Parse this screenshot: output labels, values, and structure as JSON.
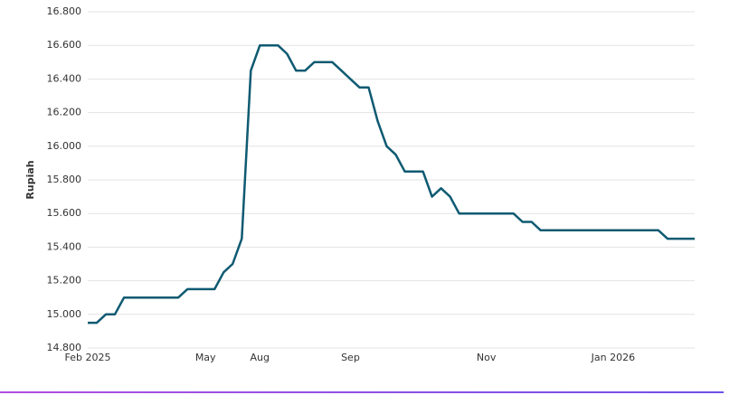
{
  "chart_data": {
    "type": "line",
    "y_label": "Rupiah",
    "categories": [
      "Feb 2025",
      null,
      null,
      null,
      null,
      null,
      null,
      null,
      null,
      null,
      null,
      null,
      null,
      "May",
      null,
      null,
      null,
      null,
      null,
      "Aug",
      null,
      null,
      null,
      null,
      null,
      null,
      null,
      null,
      null,
      "Sep",
      null,
      null,
      null,
      null,
      null,
      null,
      null,
      null,
      null,
      null,
      null,
      null,
      null,
      null,
      "Nov",
      null,
      null,
      null,
      null,
      null,
      null,
      null,
      null,
      null,
      null,
      null,
      null,
      null,
      "Jan 2026",
      null,
      null,
      null,
      null,
      null,
      null,
      null,
      null,
      null
    ],
    "series": [
      {
        "color": "#0f5a72",
        "values": [
          14950,
          14950,
          15000,
          15000,
          15100,
          15100,
          15100,
          15100,
          15100,
          15100,
          15100,
          15150,
          15150,
          15150,
          15150,
          15250,
          15300,
          15450,
          16450,
          16600,
          16600,
          16600,
          16550,
          16450,
          16450,
          16500,
          16500,
          16500,
          16450,
          16400,
          16350,
          16350,
          16150,
          16000,
          15950,
          15850,
          15850,
          15850,
          15700,
          15750,
          15700,
          15600,
          15600,
          15600,
          15600,
          15600,
          15600,
          15600,
          15550,
          15550,
          15500,
          15500,
          15500,
          15500,
          15500,
          15500,
          15500,
          15500,
          15500,
          15500,
          15500,
          15500,
          15500,
          15500,
          15450,
          15450,
          15450,
          15450
        ]
      }
    ],
    "ylim": [
      14800,
      16800
    ],
    "yticks": [
      {
        "value": 14800,
        "label": "14.800"
      },
      {
        "value": 15000,
        "label": "15.000"
      },
      {
        "value": 15200,
        "label": "15.200"
      },
      {
        "value": 15400,
        "label": "15.400"
      },
      {
        "value": 15600,
        "label": "15.600"
      },
      {
        "value": 15800,
        "label": "15.800"
      },
      {
        "value": 16000,
        "label": "16.000"
      },
      {
        "value": 16200,
        "label": "16.200"
      },
      {
        "value": 16400,
        "label": "16.400"
      },
      {
        "value": 16600,
        "label": "16.600"
      },
      {
        "value": 16800,
        "label": "16.800"
      }
    ],
    "grid": true
  }
}
